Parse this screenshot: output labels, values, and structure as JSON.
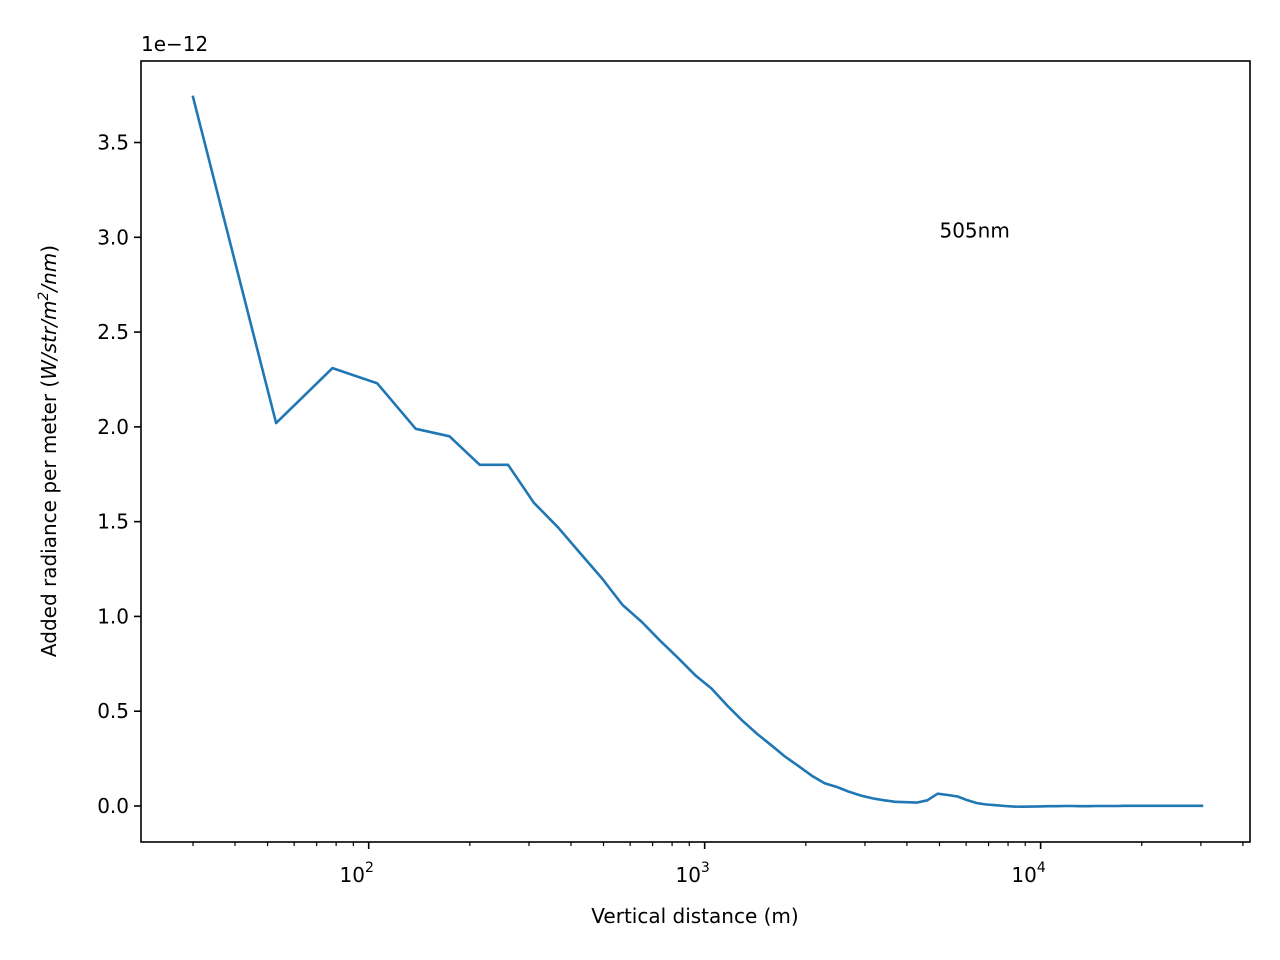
{
  "chart_data": {
    "type": "line",
    "xlabel": "Vertical distance (m)",
    "ylabel_prefix": "Added radiance per meter (",
    "ylabel_units_parts": [
      "W/str/m",
      "2",
      "/nm"
    ],
    "ylabel_suffix": ")",
    "offset_text": "1e−12",
    "annotation": "505nm",
    "annotation_pos": {
      "x": 5000,
      "y": 3.0
    },
    "x_scale": "log",
    "xlim": [
      21,
      42000
    ],
    "ylim": [
      -0.19,
      3.93
    ],
    "y_multiplier": 1e-12,
    "grid": false,
    "yticks": [
      0.0,
      0.5,
      1.0,
      1.5,
      2.0,
      2.5,
      3.0,
      3.5
    ],
    "ytick_labels": [
      "0.0",
      "0.5",
      "1.0",
      "1.5",
      "2.0",
      "2.5",
      "3.0",
      "3.5"
    ],
    "xticks_major": [
      {
        "value": 100,
        "base": "10",
        "exp": "2"
      },
      {
        "value": 1000,
        "base": "10",
        "exp": "3"
      },
      {
        "value": 10000,
        "base": "10",
        "exp": "4"
      }
    ],
    "series": [
      {
        "color": "#1f77b4",
        "x": [
          30,
          53,
          78,
          106,
          138,
          174,
          214,
          260,
          310,
          366,
          428,
          495,
          570,
          651,
          739,
          834,
          937,
          1048,
          1167,
          1295,
          1432,
          1580,
          1737,
          1905,
          2084,
          2275,
          2477,
          2692,
          2921,
          3163,
          3420,
          3691,
          3978,
          4281,
          4601,
          4938,
          5292,
          5665,
          6057,
          6468,
          6900,
          7351,
          7824,
          8318,
          8834,
          9373,
          9935,
          10520,
          11130,
          11770,
          12430,
          13110,
          13820,
          14560,
          15320,
          16110,
          16930,
          17780,
          18650,
          19560,
          20490,
          21450,
          22440,
          23460,
          24510,
          25590,
          26700,
          27840,
          29010,
          30210
        ],
        "values": [
          3.74,
          2.02,
          2.31,
          2.23,
          1.99,
          1.95,
          1.8,
          1.8,
          1.6,
          1.47,
          1.33,
          1.2,
          1.06,
          0.97,
          0.87,
          0.78,
          0.69,
          0.62,
          0.53,
          0.45,
          0.38,
          0.32,
          0.26,
          0.21,
          0.16,
          0.12,
          0.1,
          0.075,
          0.055,
          0.04,
          0.03,
          0.022,
          0.02,
          0.018,
          0.03,
          0.065,
          0.058,
          0.05,
          0.03,
          0.015,
          0.008,
          0.004,
          0.0,
          -0.003,
          -0.004,
          -0.003,
          -0.002,
          -0.001,
          -0.001,
          0.0,
          0.0,
          -0.001,
          -0.001,
          0.0,
          0.0,
          0.0,
          0.0,
          0.001,
          0.001,
          0.001,
          0.001,
          0.001,
          0.001,
          0.001,
          0.001,
          0.001,
          0.001,
          0.001,
          0.001,
          0.001
        ]
      }
    ]
  }
}
